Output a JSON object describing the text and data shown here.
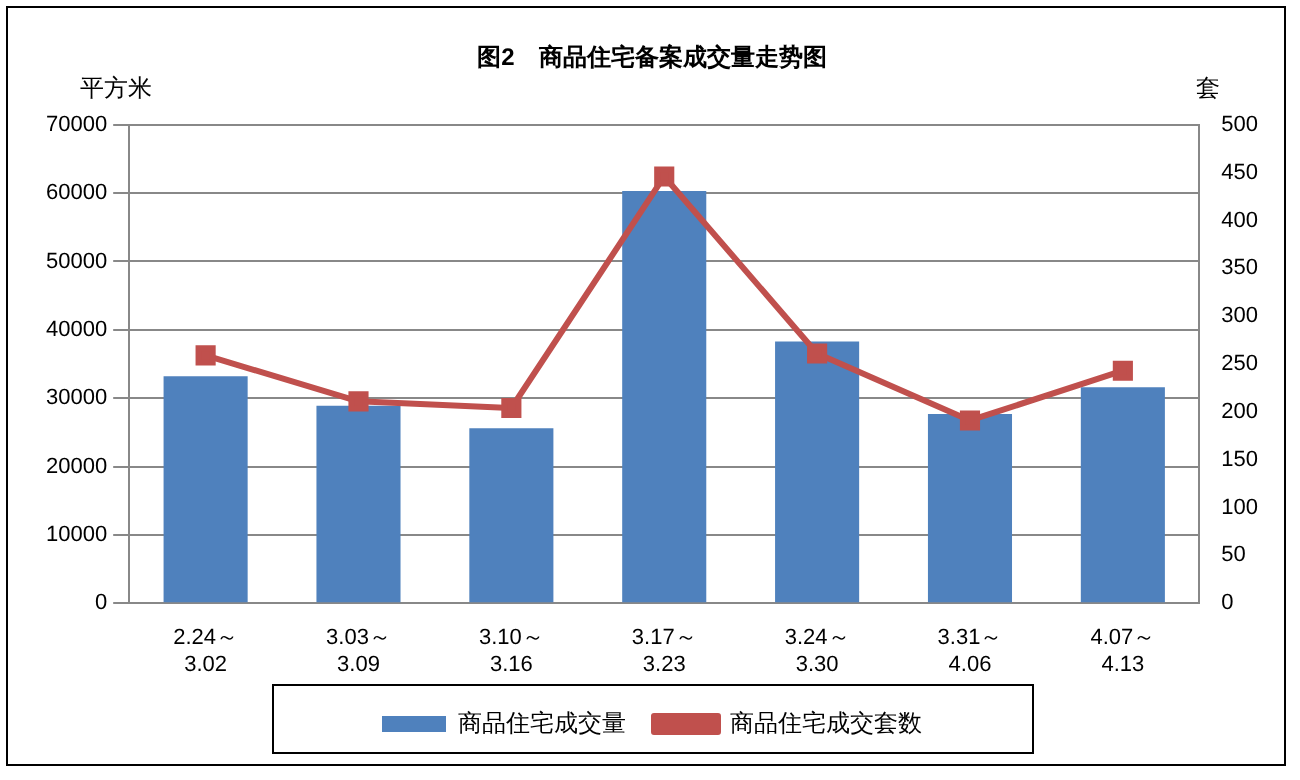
{
  "chart_data": {
    "type": "bar",
    "title": "图2　商品住宅备案成交量走势图",
    "ylabel": "平方米",
    "y2label": "套",
    "categories": [
      "2.24～\n3.02",
      "3.03～\n3.09",
      "3.10～\n3.16",
      "3.17～\n3.23",
      "3.24～\n3.30",
      "3.31～\n4.06",
      "4.07～\n4.13"
    ],
    "series": [
      {
        "name": "商品住宅成交量",
        "color": "#4f81bd",
        "values": [
          33200,
          28900,
          25600,
          60300,
          38300,
          27700,
          31600
        ]
      },
      {
        "name": "商品住宅成交套数",
        "type": "line",
        "axis": "y2",
        "color": "#c0504d",
        "marker": "square",
        "values": [
          259,
          211,
          204,
          446,
          261,
          191,
          243
        ]
      }
    ],
    "ylim": [
      0,
      70000
    ],
    "yticks": [
      0,
      10000,
      20000,
      30000,
      40000,
      50000,
      60000,
      70000
    ],
    "y2lim": [
      0,
      500
    ],
    "y2ticks": [
      0,
      50,
      100,
      150,
      200,
      250,
      300,
      350,
      400,
      450,
      500
    ],
    "grid": "y",
    "legend": "bottom"
  }
}
